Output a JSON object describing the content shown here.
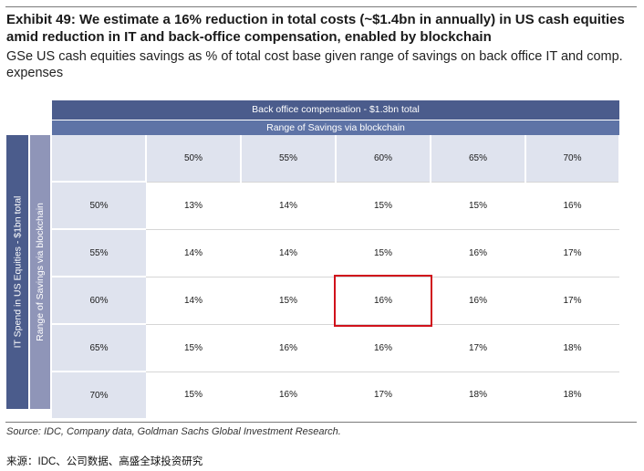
{
  "title": "Exhibit 49: We estimate a 16% reduction in total costs (~$1.4bn in annually) in US cash equities amid reduction in IT and back-office compensation, enabled by blockchain",
  "subtitle": "GSe US cash equities savings as % of total cost base given range of savings on back office  IT and comp. expenses",
  "header": {
    "top": "Back office compensation - $1.3bn total",
    "second": "Range of Savings via blockchain"
  },
  "side": {
    "outer": "IT Spend in US Equities - $1bn  total",
    "inner": "Range of Savings via blockchain"
  },
  "source": "Source: IDC, Company data, Goldman Sachs Global Investment Research.",
  "cn_source": "来源：IDC、公司数据、高盛全球投资研究",
  "chart_data": {
    "type": "table",
    "title": "GSe US cash equities savings as % of total cost base given range of savings on back office  IT and comp. expenses",
    "columns": [
      "50%",
      "55%",
      "60%",
      "65%",
      "70%"
    ],
    "rows": [
      {
        "label": "50%",
        "values": [
          "13%",
          "14%",
          "15%",
          "15%",
          "16%"
        ]
      },
      {
        "label": "55%",
        "values": [
          "14%",
          "14%",
          "15%",
          "16%",
          "17%"
        ]
      },
      {
        "label": "60%",
        "values": [
          "14%",
          "15%",
          "16%",
          "16%",
          "17%"
        ]
      },
      {
        "label": "65%",
        "values": [
          "15%",
          "16%",
          "16%",
          "17%",
          "18%"
        ]
      },
      {
        "label": "70%",
        "values": [
          "15%",
          "16%",
          "17%",
          "18%",
          "18%"
        ]
      }
    ],
    "highlight": {
      "row": 2,
      "col": 2
    },
    "highlight_color": "#d0121b",
    "header_color": "#4b5c8c"
  }
}
